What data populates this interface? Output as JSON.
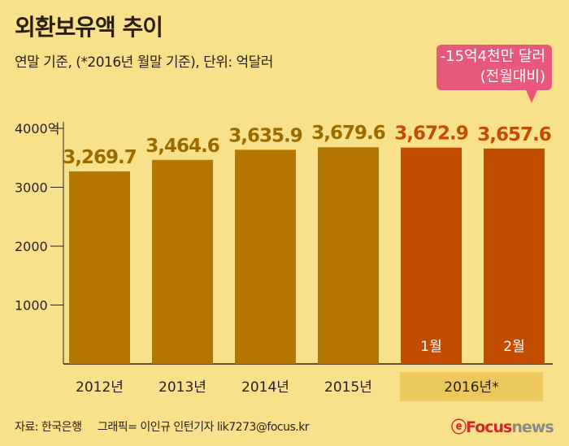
{
  "header": {
    "title": "외환보유액 추이",
    "subtitle": "연말 기준, (*2016년 월말 기준), 단위: 억달러"
  },
  "callout": {
    "line1": "-15억4천만 달러",
    "line2": "(전월대비)"
  },
  "footer": {
    "source": "자료: 한국은행",
    "credit": "그래픽= 이인규 인턴기자 lik7273@focus.kr",
    "logo": "Focus news"
  },
  "colors": {
    "background": "#F9E18B",
    "bar_year": "#B57700",
    "bar_month": "#C24C00",
    "label": "#9C6B00",
    "callout": "#E8587A"
  },
  "chart_data": {
    "type": "bar",
    "title": "외환보유액 추이",
    "ylabel": "억달러",
    "ylim": [
      0,
      4000
    ],
    "yticks": [
      "1000",
      "2000",
      "3000",
      "4000억"
    ],
    "ytick_values": [
      1000,
      2000,
      3000,
      4000
    ],
    "categories": [
      "2012년",
      "2013년",
      "2014년",
      "2015년",
      "1월",
      "2월"
    ],
    "values": [
      3269.7,
      3464.6,
      3635.9,
      3679.6,
      3672.9,
      3657.6
    ],
    "value_labels": [
      "3,269.7",
      "3,464.6",
      "3,635.9",
      "3,679.6",
      "3,672.9",
      "3,657.6"
    ],
    "group_label": "2016년*"
  }
}
